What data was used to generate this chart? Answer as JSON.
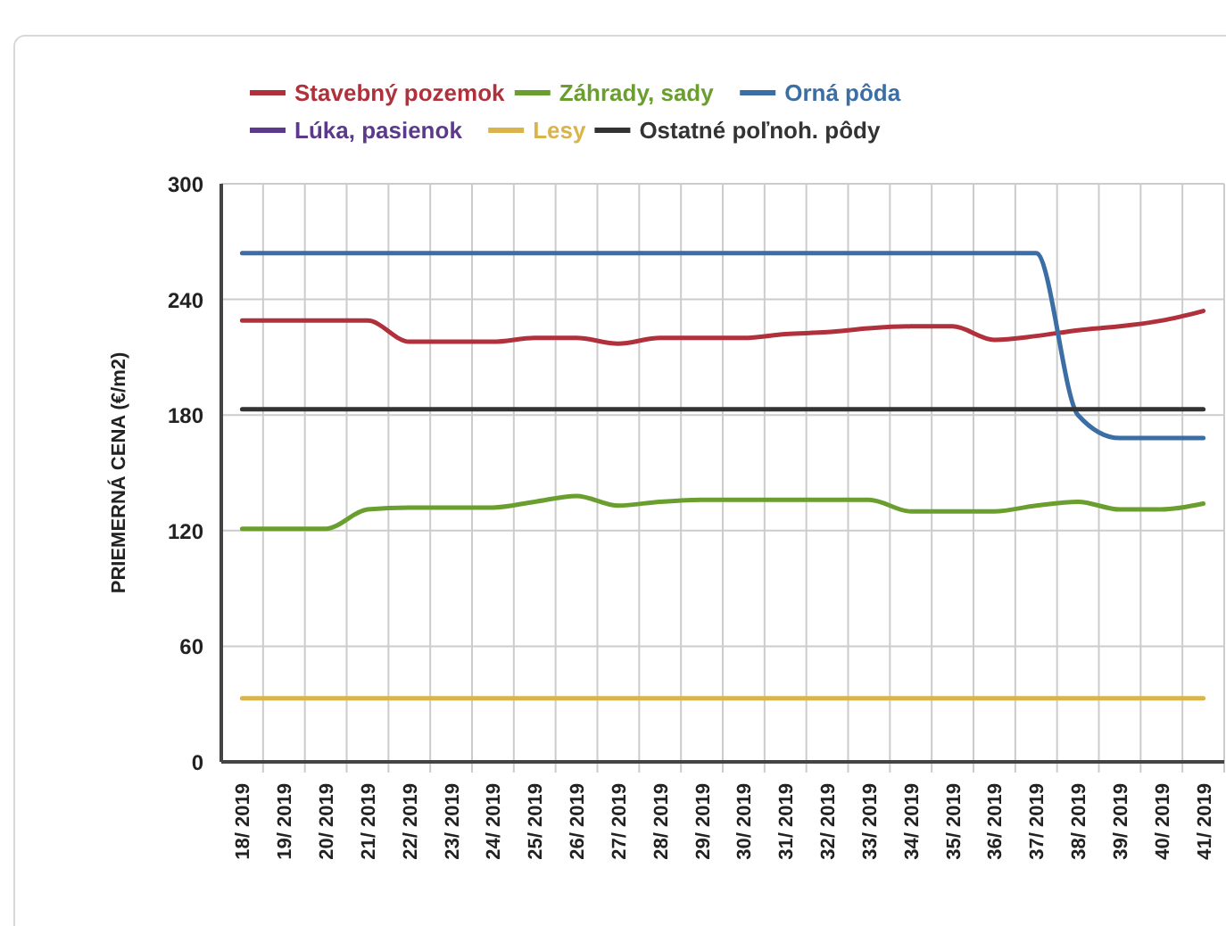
{
  "chart_data": {
    "type": "line",
    "ylabel": "PRIEMERNÁ CENA (€/m2)",
    "categories": [
      "18/ 2019",
      "19/ 2019",
      "20/ 2019",
      "21/ 2019",
      "22/ 2019",
      "23/ 2019",
      "24/ 2019",
      "25/ 2019",
      "26/ 2019",
      "27/ 2019",
      "28/ 2019",
      "29/ 2019",
      "30/ 2019",
      "31/ 2019",
      "32/ 2019",
      "33/ 2019",
      "34/ 2019",
      "35/ 2019",
      "36/ 2019",
      "37/ 2019",
      "38/ 2019",
      "39/ 2019",
      "40/ 2019",
      "41/ 2019"
    ],
    "series": [
      {
        "name": "Stavebný pozemok",
        "color": "#b0303c",
        "values": [
          229,
          229,
          229,
          229,
          218,
          218,
          218,
          220,
          220,
          217,
          220,
          220,
          220,
          222,
          223,
          225,
          226,
          226,
          219,
          221,
          224,
          226,
          229,
          234
        ]
      },
      {
        "name": "Záhrady, sady",
        "color": "#6a9e2f",
        "values": [
          121,
          121,
          121,
          131,
          132,
          132,
          132,
          135,
          138,
          133,
          135,
          136,
          136,
          136,
          136,
          136,
          130,
          130,
          130,
          133,
          135,
          131,
          131,
          134
        ]
      },
      {
        "name": "Orná pôda",
        "color": "#3b6ea5",
        "values": [
          264,
          264,
          264,
          264,
          264,
          264,
          264,
          264,
          264,
          264,
          264,
          264,
          264,
          264,
          264,
          264,
          264,
          264,
          264,
          264,
          180,
          168,
          168,
          168
        ]
      },
      {
        "name": "Lúka, pasienok",
        "color": "#5b3a8c",
        "values": [
          null,
          null,
          null,
          null,
          null,
          null,
          null,
          null,
          null,
          null,
          null,
          null,
          null,
          null,
          null,
          null,
          null,
          null,
          null,
          null,
          null,
          null,
          null,
          null
        ]
      },
      {
        "name": "Lesy",
        "color": "#d9b44a",
        "values": [
          33,
          33,
          33,
          33,
          33,
          33,
          33,
          33,
          33,
          33,
          33,
          33,
          33,
          33,
          33,
          33,
          33,
          33,
          33,
          33,
          33,
          33,
          33,
          33
        ]
      },
      {
        "name": "Ostatné poľnoh. pôdy",
        "color": "#333333",
        "values": [
          183,
          183,
          183,
          183,
          183,
          183,
          183,
          183,
          183,
          183,
          183,
          183,
          183,
          183,
          183,
          183,
          183,
          183,
          183,
          183,
          183,
          183,
          183,
          183
        ]
      }
    ],
    "ylim": [
      0,
      300
    ],
    "yticks": [
      0,
      60,
      120,
      180,
      240,
      300
    ],
    "grid": true,
    "legend": "top"
  }
}
